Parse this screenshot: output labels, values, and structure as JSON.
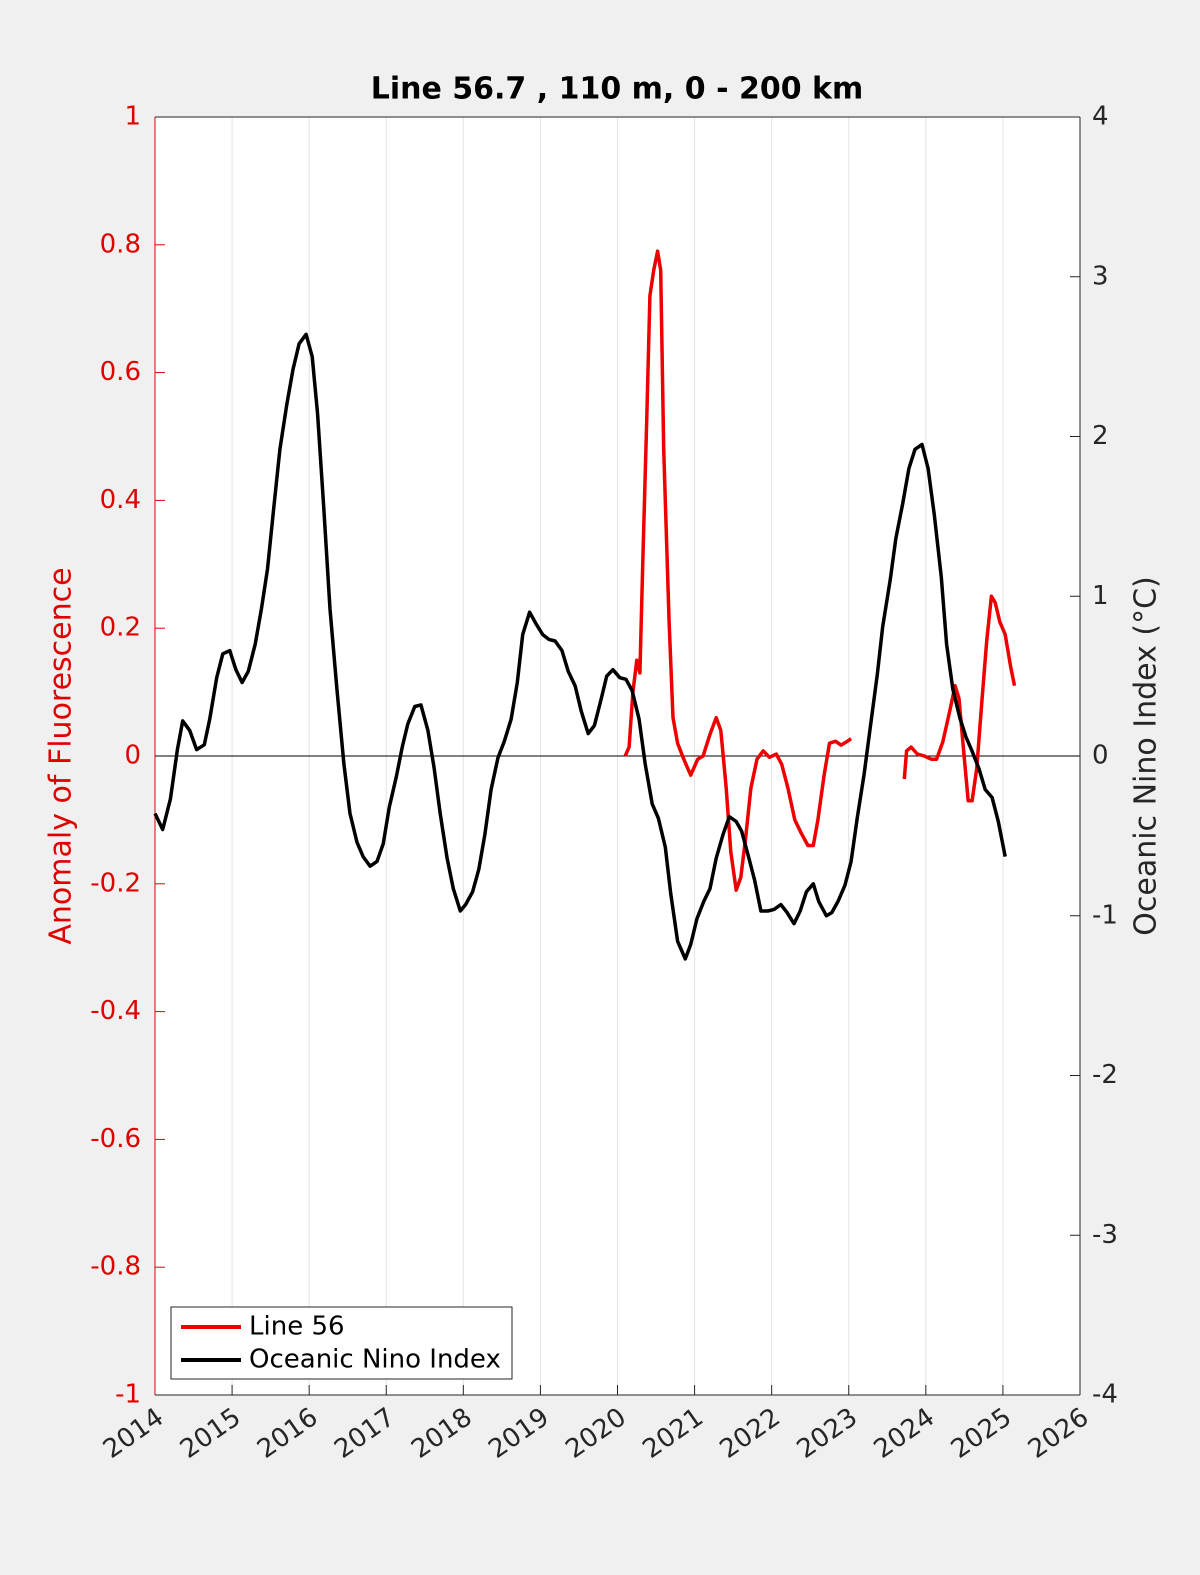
{
  "chart_data": {
    "type": "line",
    "title": "Line 56.7 , 110 m, 0 - 200 km",
    "ylabel": "Anomaly of Fluorescence",
    "y2label": "Oceanic Nino Index (°C)",
    "xlim": [
      2014,
      2026
    ],
    "xticks": [
      2014,
      2015,
      2016,
      2017,
      2018,
      2019,
      2020,
      2021,
      2022,
      2023,
      2024,
      2025,
      2026
    ],
    "ylim": [
      -1,
      1
    ],
    "yticks": [
      -1,
      -0.8,
      -0.6,
      -0.4,
      -0.2,
      0,
      0.2,
      0.4,
      0.6,
      0.8,
      1
    ],
    "y2lim": [
      -4,
      4
    ],
    "y2ticks": [
      -4,
      -3,
      -2,
      -1,
      0,
      1,
      2,
      3,
      4
    ],
    "grid": true,
    "legend": "lower left",
    "ycolor": "#e00000",
    "series": [
      {
        "name": "Line 56",
        "color": "#ee0000",
        "x": [
          2020.1,
          2020.15,
          2020.2,
          2020.25,
          2020.29,
          2020.33,
          2020.38,
          2020.42,
          2020.47,
          2020.52,
          2020.56,
          2020.6,
          2020.67,
          2020.72,
          2020.78,
          2020.86,
          2020.95,
          2021.04,
          2021.11,
          2021.2,
          2021.28,
          2021.34,
          2021.41,
          2021.47,
          2021.54,
          2021.6,
          2021.66,
          2021.73,
          2021.81,
          2021.89,
          2021.97,
          2022.06,
          2022.13,
          2022.21,
          2022.3,
          2022.38,
          2022.47,
          2022.54,
          2022.6,
          2022.68,
          2022.75,
          2022.83,
          2022.9,
          2022.97,
          2023.03,
          2023.4,
          2023.72,
          2023.75,
          2023.81,
          2023.89,
          2023.98,
          2024.07,
          2024.14,
          2024.22,
          2024.31,
          2024.38,
          2024.43,
          2024.5,
          2024.55,
          2024.6,
          2024.66,
          2024.73,
          2024.79,
          2024.85,
          2024.9,
          2024.96,
          2025.03,
          2025.1,
          2025.15
        ],
        "values": [
          0,
          0.014,
          0.1,
          0.15,
          0.13,
          0.31,
          0.53,
          0.72,
          0.76,
          0.79,
          0.76,
          0.48,
          0.21,
          0.06,
          0.02,
          -0.005,
          -0.03,
          -0.005,
          0,
          0.034,
          0.06,
          0.04,
          -0.05,
          -0.15,
          -0.21,
          -0.19,
          -0.13,
          -0.05,
          -0.005,
          0.008,
          -0.002,
          0.003,
          -0.013,
          -0.05,
          -0.1,
          -0.12,
          -0.14,
          -0.14,
          -0.1,
          -0.03,
          0.02,
          0.023,
          0.017,
          0.022,
          0.027,
          null,
          -0.036,
          0.008,
          0.014,
          0.003,
          0,
          -0.005,
          -0.005,
          0.022,
          0.07,
          0.11,
          0.09,
          -0.005,
          -0.07,
          -0.07,
          -0.02,
          0.09,
          0.18,
          0.25,
          0.24,
          0.21,
          0.19,
          0.14,
          0.11
        ]
      },
      {
        "name": "Oceanic Nino Index",
        "color": "#000000",
        "axis": "y2",
        "x": [
          2014.0,
          2014.1,
          2014.2,
          2014.29,
          2014.36,
          2014.45,
          2014.54,
          2014.64,
          2014.71,
          2014.8,
          2014.88,
          2014.97,
          2015.05,
          2015.13,
          2015.21,
          2015.3,
          2015.38,
          2015.46,
          2015.54,
          2015.62,
          2015.71,
          2015.79,
          2015.87,
          2015.96,
          2016.04,
          2016.11,
          2016.19,
          2016.27,
          2016.36,
          2016.45,
          2016.53,
          2016.62,
          2016.7,
          2016.79,
          2016.88,
          2016.96,
          2017.04,
          2017.13,
          2017.21,
          2017.28,
          2017.37,
          2017.45,
          2017.54,
          2017.62,
          2017.7,
          2017.79,
          2017.87,
          2017.96,
          2018.03,
          2018.12,
          2018.2,
          2018.28,
          2018.36,
          2018.45,
          2018.53,
          2018.62,
          2018.7,
          2018.77,
          2018.86,
          2018.94,
          2019.03,
          2019.11,
          2019.19,
          2019.28,
          2019.36,
          2019.45,
          2019.53,
          2019.62,
          2019.7,
          2019.79,
          2019.86,
          2019.94,
          2020.03,
          2020.11,
          2020.19,
          2020.28,
          2020.36,
          2020.45,
          2020.53,
          2020.62,
          2020.69,
          2020.78,
          2020.88,
          2020.95,
          2021.03,
          2021.12,
          2021.2,
          2021.28,
          2021.37,
          2021.45,
          2021.54,
          2021.61,
          2021.7,
          2021.78,
          2021.86,
          2021.95,
          2022.03,
          2022.12,
          2022.2,
          2022.29,
          2022.37,
          2022.45,
          2022.54,
          2022.61,
          2022.71,
          2022.78,
          2022.86,
          2022.95,
          2023.03,
          2023.11,
          2023.2,
          2023.28,
          2023.37,
          2023.44,
          2023.54,
          2023.61,
          2023.7,
          2023.78,
          2023.86,
          2023.95,
          2024.03,
          2024.11,
          2024.2,
          2024.27,
          2024.35,
          2024.44,
          2024.52,
          2024.6,
          2024.69,
          2024.77,
          2024.86,
          2024.94,
          2025.03
        ],
        "values": [
          -0.36,
          -0.46,
          -0.27,
          0.04,
          0.22,
          0.16,
          0.04,
          0.07,
          0.23,
          0.49,
          0.64,
          0.66,
          0.54,
          0.46,
          0.53,
          0.7,
          0.92,
          1.17,
          1.55,
          1.92,
          2.2,
          2.42,
          2.58,
          2.64,
          2.5,
          2.14,
          1.55,
          0.92,
          0.42,
          -0.05,
          -0.36,
          -0.54,
          -0.63,
          -0.69,
          -0.66,
          -0.55,
          -0.32,
          -0.13,
          0.06,
          0.2,
          0.31,
          0.32,
          0.16,
          -0.07,
          -0.36,
          -0.64,
          -0.83,
          -0.97,
          -0.93,
          -0.85,
          -0.71,
          -0.49,
          -0.21,
          -0.01,
          0.09,
          0.23,
          0.46,
          0.76,
          0.9,
          0.83,
          0.76,
          0.73,
          0.72,
          0.66,
          0.53,
          0.44,
          0.28,
          0.14,
          0.19,
          0.36,
          0.5,
          0.54,
          0.49,
          0.48,
          0.41,
          0.23,
          -0.05,
          -0.3,
          -0.39,
          -0.57,
          -0.86,
          -1.16,
          -1.27,
          -1.18,
          -1.02,
          -0.91,
          -0.83,
          -0.64,
          -0.49,
          -0.38,
          -0.41,
          -0.47,
          -0.63,
          -0.78,
          -0.97,
          -0.97,
          -0.96,
          -0.93,
          -0.98,
          -1.05,
          -0.97,
          -0.85,
          -0.8,
          -0.91,
          -1.0,
          -0.98,
          -0.91,
          -0.81,
          -0.66,
          -0.39,
          -0.11,
          0.18,
          0.51,
          0.81,
          1.11,
          1.36,
          1.58,
          1.8,
          1.92,
          1.95,
          1.8,
          1.51,
          1.12,
          0.7,
          0.42,
          0.24,
          0.12,
          0.03,
          -0.08,
          -0.21,
          -0.26,
          -0.41,
          -0.63
        ]
      }
    ]
  }
}
